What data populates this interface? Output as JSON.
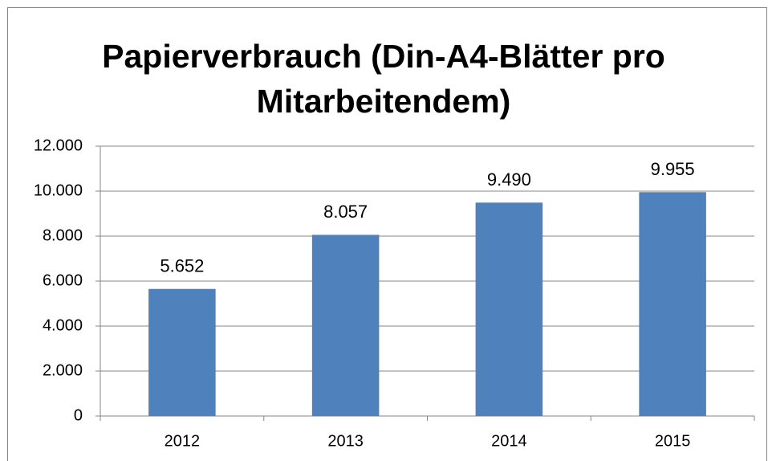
{
  "chart_data": {
    "type": "bar",
    "title": "Papierverbrauch (Din-A4-Blätter pro Mitarbeitendem)",
    "categories": [
      "2012",
      "2013",
      "2014",
      "2015"
    ],
    "values": [
      5652,
      8057,
      9490,
      9955
    ],
    "value_labels": [
      "5.652",
      "8.057",
      "9.490",
      "9.955"
    ],
    "color": "#4f81bd",
    "ylim": [
      0,
      12000
    ],
    "yticks": [
      0,
      {
        "value": 2000,
        "label": "2.000"
      },
      {
        "value": 4000,
        "label": "4.000"
      },
      {
        "value": 6000,
        "label": "6.000"
      },
      {
        "value": 8000,
        "label": "8.000"
      },
      {
        "value": 10000,
        "label": "10.000"
      },
      {
        "value": 12000,
        "label": "12.000"
      }
    ],
    "grid": true
  }
}
